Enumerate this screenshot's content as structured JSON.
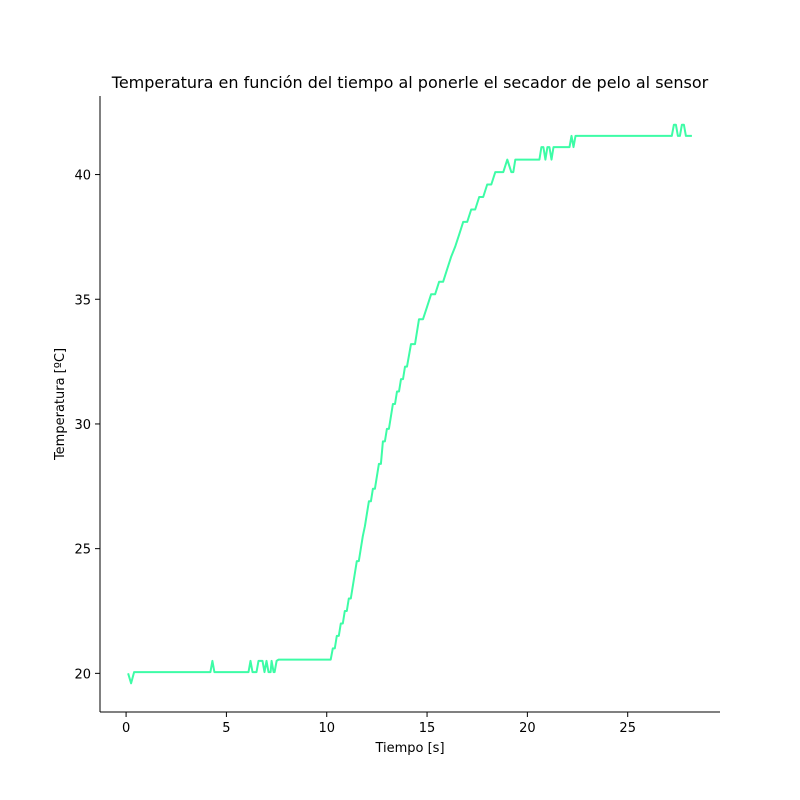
{
  "chart_data": {
    "type": "line",
    "title": "Temperatura en función del tiempo al ponerle el secador de pelo al sensor",
    "xlabel": "Tiempo [s]",
    "ylabel": "Temperatura [ºC]",
    "xlim": [
      -1.3,
      29.6
    ],
    "ylim": [
      18.45,
      43.15
    ],
    "xticks": [
      0,
      5,
      10,
      15,
      20,
      25
    ],
    "yticks": [
      20,
      25,
      30,
      35,
      40
    ],
    "grid": false,
    "spines": [
      "left",
      "bottom"
    ],
    "series": [
      {
        "color": "#3dfca6",
        "x": [
          0.1,
          0.25,
          0.4,
          0.55,
          4.2,
          4.3,
          4.4,
          4.5,
          6.1,
          6.2,
          6.3,
          6.5,
          6.6,
          6.8,
          6.9,
          7.0,
          7.1,
          7.2,
          7.25,
          7.35,
          7.4,
          7.5,
          7.6,
          7.7,
          10.2,
          10.3,
          10.4,
          10.5,
          10.6,
          10.7,
          10.8,
          10.9,
          11.0,
          11.1,
          11.2,
          11.3,
          11.4,
          11.5,
          11.6,
          11.7,
          11.8,
          11.9,
          12.0,
          12.1,
          12.2,
          12.3,
          12.4,
          12.5,
          12.6,
          12.7,
          12.8,
          12.9,
          13.0,
          13.1,
          13.2,
          13.3,
          13.4,
          13.5,
          13.6,
          13.7,
          13.8,
          13.9,
          14.0,
          14.2,
          14.4,
          14.6,
          14.8,
          15.0,
          15.2,
          15.4,
          15.6,
          15.8,
          16.0,
          16.2,
          16.4,
          16.6,
          16.8,
          17.0,
          17.2,
          17.4,
          17.6,
          17.8,
          18.0,
          18.2,
          18.4,
          18.6,
          18.8,
          19.0,
          19.2,
          19.3,
          19.4,
          19.5,
          19.6,
          19.7,
          20.6,
          20.7,
          20.8,
          20.9,
          21.0,
          21.1,
          21.2,
          21.3,
          22.1,
          22.2,
          22.3,
          22.4,
          27.2,
          27.3,
          27.4,
          27.5,
          27.6,
          27.7,
          27.8,
          27.9,
          28.0,
          28.1,
          28.2
        ],
        "y": [
          20.0,
          19.6,
          20.05,
          20.05,
          20.05,
          20.5,
          20.05,
          20.05,
          20.05,
          20.5,
          20.05,
          20.05,
          20.5,
          20.5,
          20.05,
          20.5,
          20.05,
          20.05,
          20.5,
          20.05,
          20.05,
          20.5,
          20.55,
          20.55,
          20.55,
          21.0,
          21.0,
          21.5,
          21.5,
          22.0,
          22.0,
          22.5,
          22.5,
          23.0,
          23.0,
          23.5,
          24.0,
          24.5,
          24.5,
          25.0,
          25.5,
          25.9,
          26.4,
          26.9,
          26.9,
          27.4,
          27.4,
          27.9,
          28.4,
          28.4,
          29.3,
          29.3,
          29.8,
          29.8,
          30.3,
          30.8,
          30.8,
          31.3,
          31.3,
          31.8,
          31.8,
          32.3,
          32.3,
          33.2,
          33.2,
          34.2,
          34.2,
          34.7,
          35.2,
          35.2,
          35.7,
          35.7,
          36.2,
          36.7,
          37.1,
          37.6,
          38.1,
          38.1,
          38.6,
          38.6,
          39.1,
          39.1,
          39.6,
          39.6,
          40.1,
          40.1,
          40.1,
          40.6,
          40.1,
          40.1,
          40.6,
          40.6,
          40.6,
          40.6,
          40.6,
          41.1,
          41.1,
          40.6,
          41.1,
          41.1,
          40.6,
          41.1,
          41.1,
          41.55,
          41.1,
          41.55,
          41.55,
          42.0,
          42.0,
          41.55,
          41.55,
          42.0,
          42.0,
          41.55,
          41.55,
          41.55,
          41.55
        ]
      }
    ]
  }
}
